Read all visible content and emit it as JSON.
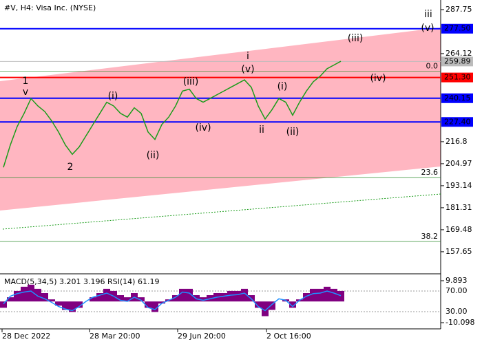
{
  "header": "#V, H4:  Visa Inc. (NYSE)",
  "chart_data": [
    {
      "type": "line",
      "name": "price",
      "color": "#1a9c1a",
      "values": [
        203,
        215,
        225,
        232,
        240,
        236,
        233,
        228,
        222,
        215,
        210,
        214,
        220,
        226,
        232,
        238,
        236,
        232,
        230,
        235,
        232,
        222,
        218,
        226,
        230,
        236,
        244,
        245,
        240,
        238,
        240,
        242,
        244,
        246,
        248,
        250,
        246,
        236,
        229,
        234,
        240,
        238,
        231,
        238,
        244,
        249,
        252,
        256,
        258,
        260
      ],
      "ylim": [
        145.79,
        292.93
      ],
      "yticks": [
        287.75,
        264.12,
        216.8,
        204.97,
        193.14,
        181.31,
        169.48,
        157.65
      ],
      "levels": [
        {
          "value": 277.5,
          "label": "277.50",
          "color": "#0000ff"
        },
        {
          "value": 259.89,
          "label": "259.89",
          "color": "#bbbbbb"
        },
        {
          "value": 251.3,
          "label": "251.30",
          "color": "#ff0000"
        },
        {
          "value": 240.15,
          "label": "240.15",
          "color": "#0000ff"
        },
        {
          "value": 227.4,
          "label": "227.40",
          "color": "#0000ff"
        }
      ],
      "fib": [
        {
          "name": "0.0",
          "value": 254.6
        },
        {
          "name": "23.6",
          "value": 197.5
        },
        {
          "name": "38.2",
          "value": 163.2
        }
      ],
      "xlabels": [
        "28 Dec 2022",
        "28 Mar 20:00",
        "29 Jun 20:00",
        "2 Oct 16:00"
      ],
      "annotations": [
        "1",
        "v",
        "2",
        "(i)",
        "(ii)",
        "(iii)",
        "(iv)",
        "(v)",
        "i",
        "ii",
        "(i)",
        "(ii)",
        "(iii)",
        "(iv)",
        "(v)",
        "iii"
      ]
    },
    {
      "type": "bar",
      "title": "MACD(5,34,5) 3.201 3.196 RSI(14) 61.19",
      "color": "#800080",
      "values": [
        -3,
        2,
        5,
        7,
        8,
        6,
        4,
        1,
        -2,
        -4,
        -5,
        -3,
        0,
        2,
        4,
        6,
        5,
        3,
        2,
        4,
        2,
        -3,
        -5,
        -1,
        1,
        3,
        6,
        6,
        3,
        2,
        3,
        4,
        4,
        5,
        5,
        6,
        3,
        -3,
        -7,
        -4,
        0,
        1,
        -3,
        1,
        4,
        6,
        6,
        7,
        6,
        5
      ],
      "rsi": {
        "name": "RSI(14)",
        "color": "#1e90ff",
        "values": [
          45,
          60,
          65,
          68,
          70,
          60,
          55,
          48,
          40,
          35,
          32,
          40,
          50,
          58,
          62,
          66,
          60,
          52,
          50,
          58,
          52,
          38,
          34,
          46,
          52,
          58,
          68,
          66,
          55,
          52,
          55,
          58,
          60,
          62,
          63,
          66,
          55,
          40,
          32,
          44,
          55,
          52,
          40,
          52,
          60,
          65,
          66,
          70,
          66,
          61
        ]
      },
      "ylim": [
        -10.098,
        9.893
      ],
      "yticks": [
        {
          "value": 9.893,
          "label": "9.893"
        },
        {
          "value": -10.098,
          "label": "-10.098"
        }
      ],
      "rsiticks": [
        {
          "value": 70,
          "label": "70.00"
        },
        {
          "value": 30,
          "label": "30.00"
        }
      ]
    }
  ]
}
